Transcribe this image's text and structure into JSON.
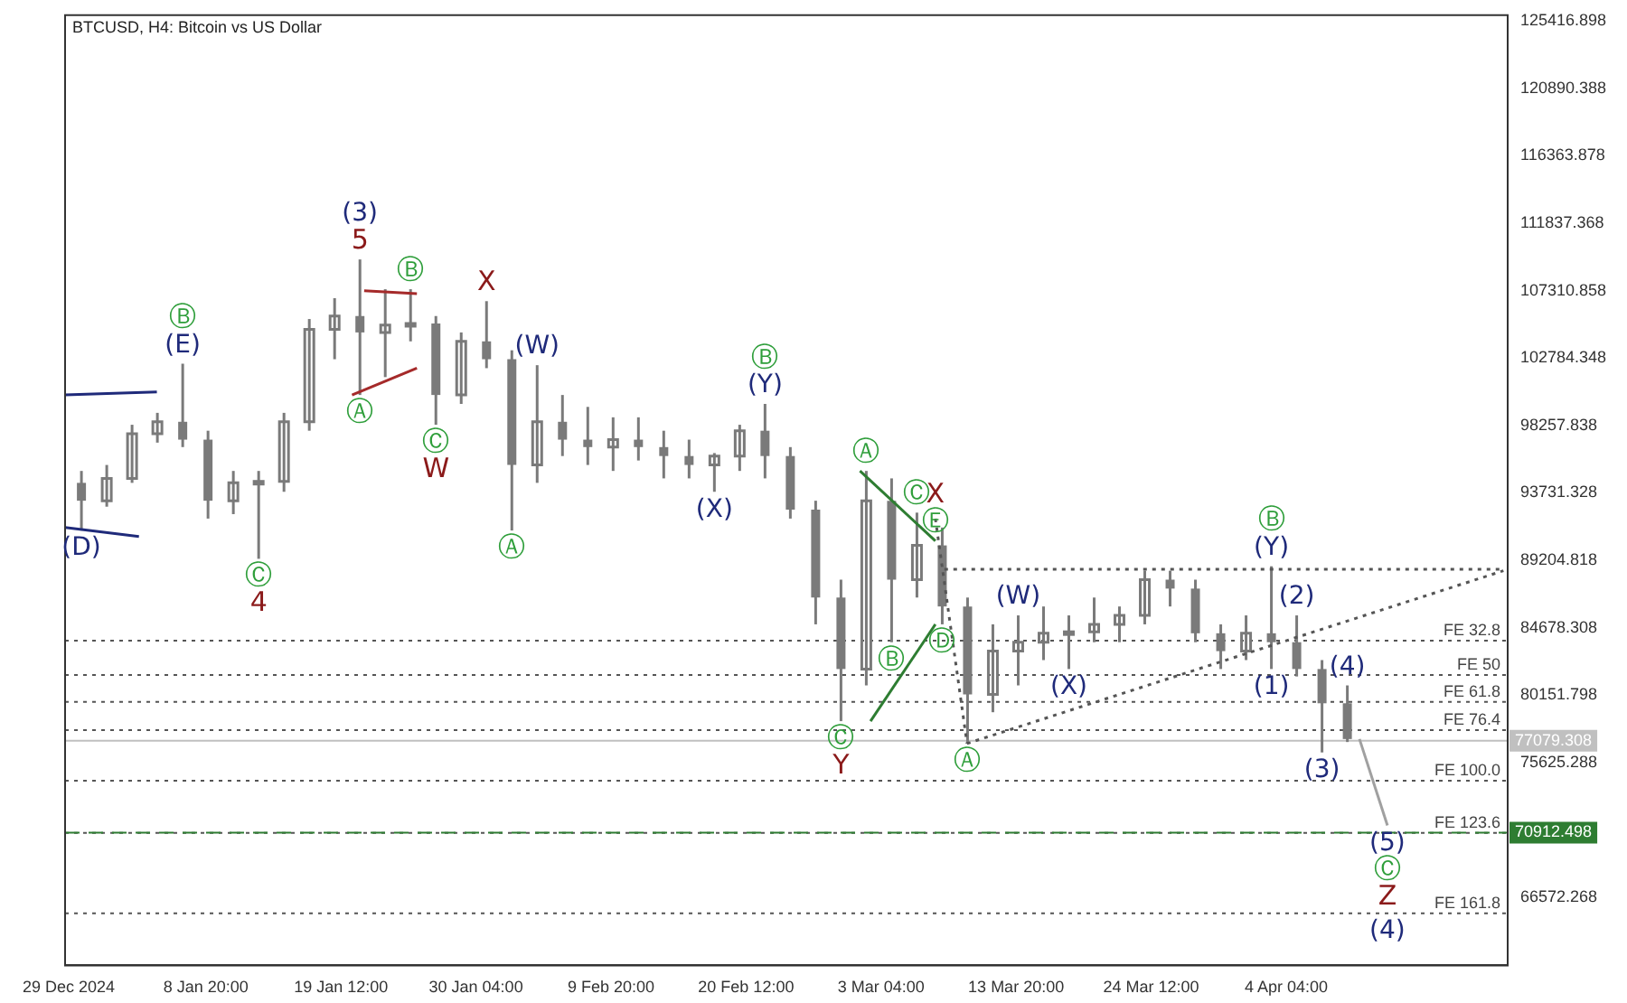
{
  "chart_data": {
    "type": "candlestick",
    "title": "BTCUSD, H4:  Bitcoin vs US Dollar",
    "color": "#7a7a7a",
    "x": [
      "2024-12-30",
      "2025-01-01",
      "2025-01-03",
      "2025-01-05",
      "2025-01-07",
      "2025-01-09",
      "2025-01-11",
      "2025-01-13",
      "2025-01-15",
      "2025-01-17",
      "2025-01-19",
      "2025-01-21",
      "2025-01-23",
      "2025-01-25",
      "2025-01-27",
      "2025-01-29",
      "2025-01-31",
      "2025-02-02",
      "2025-02-04",
      "2025-02-06",
      "2025-02-08",
      "2025-02-10",
      "2025-02-12",
      "2025-02-14",
      "2025-02-16",
      "2025-02-18",
      "2025-02-20",
      "2025-02-22",
      "2025-02-24",
      "2025-02-26",
      "2025-02-28",
      "2025-03-02",
      "2025-03-04",
      "2025-03-06",
      "2025-03-08",
      "2025-03-10",
      "2025-03-12",
      "2025-03-14",
      "2025-03-16",
      "2025-03-18",
      "2025-03-20",
      "2025-03-22",
      "2025-03-24",
      "2025-03-26",
      "2025-03-28",
      "2025-03-30",
      "2025-04-01",
      "2025-04-03",
      "2025-04-05",
      "2025-04-07",
      "2025-04-09"
    ],
    "ohlc": [
      [
        94400,
        95200,
        91200,
        93200
      ],
      [
        93200,
        95600,
        92800,
        94700
      ],
      [
        94700,
        98300,
        94400,
        97700
      ],
      [
        97700,
        99100,
        97100,
        98500
      ],
      [
        98500,
        102400,
        96800,
        97300
      ],
      [
        97300,
        97900,
        92000,
        93200
      ],
      [
        93200,
        95200,
        92300,
        94400
      ],
      [
        94400,
        95200,
        89300,
        94500
      ],
      [
        94500,
        99100,
        93800,
        98500
      ],
      [
        98500,
        105400,
        97900,
        104700
      ],
      [
        104700,
        106800,
        102700,
        105600
      ],
      [
        105600,
        109400,
        100300,
        104500
      ],
      [
        104500,
        107400,
        101500,
        105000
      ],
      [
        105000,
        107400,
        103900,
        105100
      ],
      [
        105100,
        105600,
        98300,
        100300
      ],
      [
        100300,
        104500,
        99700,
        103900
      ],
      [
        103900,
        106600,
        102100,
        102700
      ],
      [
        102700,
        103300,
        91200,
        95600
      ],
      [
        95600,
        102300,
        94400,
        98500
      ],
      [
        98500,
        100300,
        96200,
        97300
      ],
      [
        97300,
        99500,
        95600,
        96800
      ],
      [
        96800,
        98800,
        95200,
        97300
      ],
      [
        97300,
        98800,
        95900,
        96800
      ],
      [
        96800,
        97900,
        94700,
        96200
      ],
      [
        96200,
        97300,
        94700,
        95600
      ],
      [
        95600,
        96400,
        93800,
        96200
      ],
      [
        96200,
        98300,
        95200,
        97900
      ],
      [
        97900,
        99700,
        94700,
        96200
      ],
      [
        96200,
        96800,
        92000,
        92600
      ],
      [
        92600,
        93200,
        84900,
        86700
      ],
      [
        86700,
        87900,
        78400,
        81900
      ],
      [
        81900,
        95200,
        80800,
        93200
      ],
      [
        93200,
        94700,
        83700,
        87900
      ],
      [
        87900,
        92400,
        86700,
        90200
      ],
      [
        90200,
        91400,
        84900,
        86100
      ],
      [
        86100,
        86700,
        76900,
        80200
      ],
      [
        80200,
        84900,
        79000,
        83100
      ],
      [
        83100,
        85500,
        80800,
        83700
      ],
      [
        83700,
        86100,
        82500,
        84300
      ],
      [
        84300,
        85500,
        81900,
        84400
      ],
      [
        84400,
        86700,
        83700,
        84900
      ],
      [
        84900,
        86100,
        83700,
        85500
      ],
      [
        85500,
        88500,
        84900,
        87900
      ],
      [
        87900,
        88500,
        86100,
        87300
      ],
      [
        87300,
        87900,
        83700,
        84300
      ],
      [
        84300,
        84900,
        81900,
        83100
      ],
      [
        83100,
        85500,
        82500,
        84300
      ],
      [
        84300,
        88800,
        81900,
        83700
      ],
      [
        83700,
        85500,
        81400,
        81900
      ],
      [
        81900,
        82500,
        76300,
        79600
      ],
      [
        79600,
        80800,
        77000,
        77200
      ]
    ],
    "series": [
      {
        "type": "line",
        "color": "#1f2a7a",
        "line_style": "solid",
        "x": [
          "2024-12-28T17:00",
          "2025-01-04T23:00"
        ],
        "values": [
          100300,
          100500
        ]
      },
      {
        "type": "line",
        "color": "#1f2a7a",
        "line_style": "solid",
        "x": [
          "2024-12-28T17:00",
          "2025-01-03T13:00"
        ],
        "values": [
          91400,
          90800
        ]
      },
      {
        "type": "line",
        "color": "#a52a2a",
        "line_style": "solid",
        "x": [
          "2025-01-21T08:00",
          "2025-01-25T12:00"
        ],
        "values": [
          107300,
          107100
        ]
      },
      {
        "type": "line",
        "color": "#a52a2a",
        "line_style": "solid",
        "x": [
          "2025-01-20T09:00",
          "2025-01-25T12:00"
        ],
        "values": [
          100300,
          102100
        ]
      },
      {
        "type": "line",
        "color": "#2e7d32",
        "line_style": "solid",
        "x": [
          "2025-03-01T12:00",
          "2025-03-07T11:00"
        ],
        "values": [
          95200,
          90500
        ]
      },
      {
        "type": "line",
        "color": "#2e7d32",
        "line_style": "solid",
        "x": [
          "2025-03-02T08:00",
          "2025-03-07T11:00"
        ],
        "values": [
          78400,
          84900
        ]
      },
      {
        "type": "line",
        "color": "#555555",
        "line_style": "dotted",
        "x": [
          "2025-03-08T04:00",
          "2025-04-21T08:00"
        ],
        "values": [
          88600,
          88600
        ]
      },
      {
        "type": "line",
        "color": "#555555",
        "line_style": "dotted",
        "x": [
          "2025-03-09T23:00",
          "2025-04-21T08:00"
        ],
        "values": [
          76900,
          88500
        ]
      },
      {
        "type": "line",
        "color": "#555555",
        "line_style": "dotted",
        "x": [
          "2025-03-07T11:00",
          "2025-03-09T23:00"
        ],
        "values": [
          92000,
          76900
        ]
      },
      {
        "type": "line",
        "color": "#a0a0a0",
        "line_style": "solid",
        "x": [
          "2025-04-09T23:00",
          "2025-04-12T04:00"
        ],
        "values": [
          77200,
          71400
        ]
      }
    ],
    "xlim": [
      "2024-12-28T17:00",
      "2025-04-21T16:00"
    ],
    "xticks": [
      {
        "value": "2024-12-29T00:00",
        "label": "29 Dec 2024"
      },
      {
        "value": "2025-01-08T20:00",
        "label": "8 Jan 20:00"
      },
      {
        "value": "2025-01-19T12:00",
        "label": "19 Jan 12:00"
      },
      {
        "value": "2025-01-30T04:00",
        "label": "30 Jan 04:00"
      },
      {
        "value": "2025-02-09T20:00",
        "label": "9 Feb 20:00"
      },
      {
        "value": "2025-02-20T12:00",
        "label": "20 Feb 12:00"
      },
      {
        "value": "2025-03-03T04:00",
        "label": "3 Mar 04:00"
      },
      {
        "value": "2025-03-13T20:00",
        "label": "13 Mar 20:00"
      },
      {
        "value": "2025-03-24T12:00",
        "label": "24 Mar 12:00"
      },
      {
        "value": "2025-04-04T04:00",
        "label": "4 Apr 04:00"
      }
    ],
    "ylim": [
      62000,
      125800
    ],
    "yticks": [
      66572.268,
      75625.288,
      80151.798,
      84678.308,
      89204.818,
      93731.328,
      98257.838,
      102784.348,
      107310.858,
      111837.368,
      116363.878,
      120890.388,
      125416.898
    ],
    "ref_lines": [
      {
        "axis": "y",
        "value": 83800,
        "label": "FE 32.8",
        "line_style": "dotted",
        "color": "#555555"
      },
      {
        "axis": "y",
        "value": 81500,
        "label": "FE 50",
        "line_style": "dotted",
        "color": "#555555"
      },
      {
        "axis": "y",
        "value": 79700,
        "label": "FE 61.8",
        "line_style": "dotted",
        "color": "#555555"
      },
      {
        "axis": "y",
        "value": 77800,
        "label": "FE 76.4",
        "line_style": "dotted",
        "color": "#555555"
      },
      {
        "axis": "y",
        "value": 74400,
        "label": "FE 100.0",
        "line_style": "dotted",
        "color": "#555555"
      },
      {
        "axis": "y",
        "value": 70900,
        "label": "FE 123.6",
        "line_style": "dotted",
        "color": "#555555"
      },
      {
        "axis": "y",
        "value": 65500,
        "label": "FE 161.8",
        "line_style": "dotted",
        "color": "#555555"
      },
      {
        "axis": "y",
        "value": 77079.308,
        "label": "77079.308",
        "line_style": "solid",
        "color": "#c0c0c0"
      },
      {
        "axis": "y",
        "value": 70912.498,
        "label": "70912.498",
        "line_style": "dashed",
        "color": "#2e7d32"
      }
    ],
    "annotations": [
      {
        "text": "(D)",
        "x": "2024-12-30",
        "y": 91200
      },
      {
        "text": "(E)",
        "x": "2025-01-07",
        "y": 102400
      },
      {
        "text": "Ⓑ",
        "x": "2025-01-07",
        "y": 102400
      },
      {
        "text": "Ⓒ",
        "x": "2025-01-13",
        "y": 89300
      },
      {
        "text": "4",
        "x": "2025-01-13",
        "y": 89300
      },
      {
        "text": "5",
        "x": "2025-01-21",
        "y": 109400
      },
      {
        "text": "(3)",
        "x": "2025-01-21",
        "y": 109400
      },
      {
        "text": "Ⓐ",
        "x": "2025-01-21",
        "y": 100300
      },
      {
        "text": "Ⓑ",
        "x": "2025-01-25",
        "y": 107400
      },
      {
        "text": "Ⓒ",
        "x": "2025-01-27",
        "y": 98300
      },
      {
        "text": "W",
        "x": "2025-01-27",
        "y": 98300
      },
      {
        "text": "X",
        "x": "2025-01-31",
        "y": 106600
      },
      {
        "text": "Ⓐ",
        "x": "2025-02-02",
        "y": 91200
      },
      {
        "text": "(W)",
        "x": "2025-02-04",
        "y": 102300
      },
      {
        "text": "(X)",
        "x": "2025-02-18",
        "y": 93800
      },
      {
        "text": "(Y)",
        "x": "2025-02-22",
        "y": 99700
      },
      {
        "text": "Ⓑ",
        "x": "2025-02-22",
        "y": 99700
      },
      {
        "text": "Ⓒ",
        "x": "2025-02-28",
        "y": 78400
      },
      {
        "text": "Y",
        "x": "2025-02-28",
        "y": 78400
      },
      {
        "text": "Ⓐ",
        "x": "2025-03-02",
        "y": 95200
      },
      {
        "text": "Ⓑ",
        "x": "2025-03-04",
        "y": 83700
      },
      {
        "text": "Ⓒ",
        "x": "2025-03-06",
        "y": 92400
      },
      {
        "text": "Ⓓ",
        "x": "2025-03-08",
        "y": 84900
      },
      {
        "text": "Ⓔ",
        "x": "2025-03-07T11:00",
        "y": 90500
      },
      {
        "text": "X",
        "x": "2025-03-07T11:00",
        "y": 90500
      },
      {
        "text": "Ⓐ",
        "x": "2025-03-10",
        "y": 76900
      },
      {
        "text": "(W)",
        "x": "2025-03-14",
        "y": 85500
      },
      {
        "text": "(X)",
        "x": "2025-03-18",
        "y": 81900
      },
      {
        "text": "(Y)",
        "x": "2025-04-03",
        "y": 88800
      },
      {
        "text": "Ⓑ",
        "x": "2025-04-03",
        "y": 88800
      },
      {
        "text": "(1)",
        "x": "2025-04-03",
        "y": 81900
      },
      {
        "text": "(2)",
        "x": "2025-04-05",
        "y": 85500
      },
      {
        "text": "(3)",
        "x": "2025-04-07",
        "y": 76300
      },
      {
        "text": "(4)",
        "x": "2025-04-09",
        "y": 80800
      },
      {
        "text": "(5)",
        "x": "2025-04-12T04:00",
        "y": 71400
      },
      {
        "text": "Ⓒ",
        "x": "2025-04-12T04:00",
        "y": 71400
      },
      {
        "text": "Z",
        "x": "2025-04-12T04:00",
        "y": 71400
      },
      {
        "text": "(4)",
        "x": "2025-04-12T04:00",
        "y": 65500
      }
    ]
  }
}
